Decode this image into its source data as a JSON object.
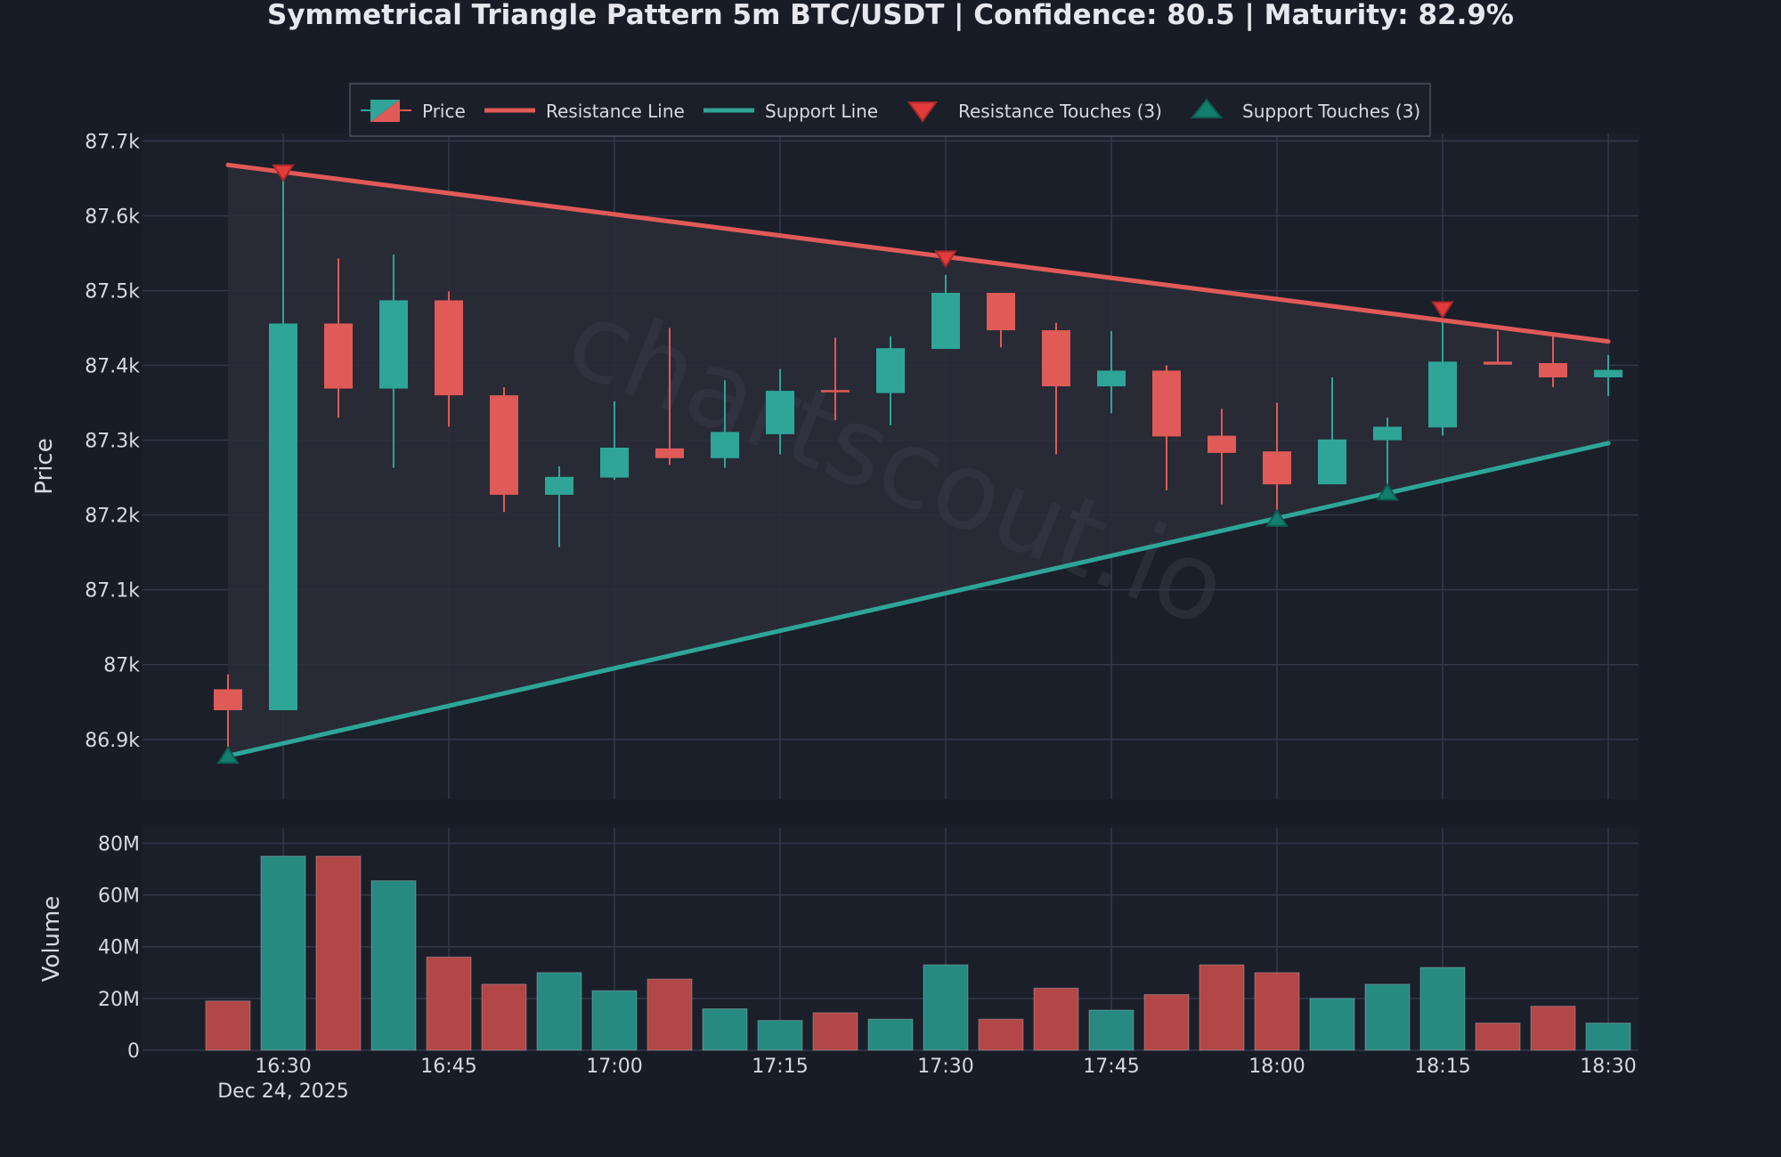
{
  "title": "Symmetrical Triangle Pattern 5m BTC/USDT | Confidence: 80.5 | Maturity: 82.9%",
  "watermark": "chartscout.io",
  "colors": {
    "background": "#181c27",
    "plot_bg": "#1b1f2a",
    "bull": "#2ea597",
    "bear": "#e05a57",
    "bull_volume": "#268a80",
    "bear_volume": "#b34747",
    "triangle_fill": "#2a2d38",
    "grid": "#32384a"
  },
  "legend": {
    "price": "Price",
    "resistance_line": "Resistance Line",
    "support_line": "Support Line",
    "resistance_touches": "Resistance Touches (3)",
    "support_touches": "Support Touches (3)"
  },
  "chart_data": [
    {
      "type": "candlestick",
      "ylabel": "Price",
      "ylim": [
        86820,
        87710
      ],
      "y_ticks": [
        {
          "value": 86900,
          "label": "86.9k"
        },
        {
          "value": 87000,
          "label": "87k"
        },
        {
          "value": 87100,
          "label": "87.1k"
        },
        {
          "value": 87200,
          "label": "87.2k"
        },
        {
          "value": 87300,
          "label": "87.3k"
        },
        {
          "value": 87400,
          "label": "87.4k"
        },
        {
          "value": 87500,
          "label": "87.5k"
        },
        {
          "value": 87600,
          "label": "87.6k"
        },
        {
          "value": 87700,
          "label": "87.7k"
        }
      ],
      "x_ticks": [
        "16:30",
        "16:45",
        "17:00",
        "17:15",
        "17:30",
        "17:45",
        "18:00",
        "18:15",
        "18:30"
      ],
      "x_date_label": "Dec 24, 2025",
      "grid": true,
      "legend_position": "top-center",
      "candles": [
        {
          "time": "16:25",
          "open": 86967,
          "high": 86987,
          "low": 86890,
          "close": 86939
        },
        {
          "time": "16:30",
          "open": 86939,
          "high": 87667,
          "low": 86939,
          "close": 87456
        },
        {
          "time": "16:35",
          "open": 87456,
          "high": 87543,
          "low": 87330,
          "close": 87369
        },
        {
          "time": "16:40",
          "open": 87369,
          "high": 87548,
          "low": 87263,
          "close": 87487
        },
        {
          "time": "16:45",
          "open": 87487,
          "high": 87499,
          "low": 87318,
          "close": 87360
        },
        {
          "time": "16:50",
          "open": 87360,
          "high": 87371,
          "low": 87204,
          "close": 87227
        },
        {
          "time": "16:55",
          "open": 87227,
          "high": 87265,
          "low": 87157,
          "close": 87251
        },
        {
          "time": "17:00",
          "open": 87250,
          "high": 87352,
          "low": 87247,
          "close": 87290
        },
        {
          "time": "17:05",
          "open": 87289,
          "high": 87450,
          "low": 87267,
          "close": 87276
        },
        {
          "time": "17:10",
          "open": 87276,
          "high": 87380,
          "low": 87263,
          "close": 87311
        },
        {
          "time": "17:15",
          "open": 87308,
          "high": 87395,
          "low": 87281,
          "close": 87366
        },
        {
          "time": "17:20",
          "open": 87367,
          "high": 87437,
          "low": 87327,
          "close": 87364
        },
        {
          "time": "17:25",
          "open": 87363,
          "high": 87439,
          "low": 87320,
          "close": 87423
        },
        {
          "time": "17:30",
          "open": 87422,
          "high": 87521,
          "low": 87422,
          "close": 87497
        },
        {
          "time": "17:35",
          "open": 87497,
          "high": 87497,
          "low": 87424,
          "close": 87447
        },
        {
          "time": "17:40",
          "open": 87447,
          "high": 87457,
          "low": 87281,
          "close": 87372
        },
        {
          "time": "17:45",
          "open": 87372,
          "high": 87446,
          "low": 87336,
          "close": 87393
        },
        {
          "time": "17:50",
          "open": 87393,
          "high": 87400,
          "low": 87233,
          "close": 87305
        },
        {
          "time": "17:55",
          "open": 87306,
          "high": 87342,
          "low": 87214,
          "close": 87283
        },
        {
          "time": "18:00",
          "open": 87285,
          "high": 87350,
          "low": 87201,
          "close": 87241
        },
        {
          "time": "18:05",
          "open": 87241,
          "high": 87384,
          "low": 87241,
          "close": 87301
        },
        {
          "time": "18:10",
          "open": 87300,
          "high": 87330,
          "low": 87225,
          "close": 87318
        },
        {
          "time": "18:15",
          "open": 87317,
          "high": 87463,
          "low": 87306,
          "close": 87405
        },
        {
          "time": "18:20",
          "open": 87405,
          "high": 87446,
          "low": 87402,
          "close": 87401
        },
        {
          "time": "18:25",
          "open": 87403,
          "high": 87441,
          "low": 87371,
          "close": 87384
        },
        {
          "time": "18:30",
          "open": 87384,
          "high": 87414,
          "low": 87359,
          "close": 87394
        }
      ],
      "resistance_line": {
        "start": {
          "time": "16:25",
          "price": 87668
        },
        "end": {
          "time": "18:30",
          "price": 87432
        }
      },
      "support_line": {
        "start": {
          "time": "16:25",
          "price": 86878
        },
        "end": {
          "time": "18:30",
          "price": 87296
        }
      },
      "resistance_touches": [
        {
          "time": "16:30",
          "price": 87658
        },
        {
          "time": "17:30",
          "price": 87543
        },
        {
          "time": "18:15",
          "price": 87475
        }
      ],
      "support_touches": [
        {
          "time": "16:25",
          "price": 86878
        },
        {
          "time": "18:00",
          "price": 87195
        },
        {
          "time": "18:10",
          "price": 87230
        }
      ]
    },
    {
      "type": "bar",
      "ylabel": "Volume",
      "ylim": [
        0,
        86000000
      ],
      "y_ticks": [
        {
          "value": 0,
          "label": "0"
        },
        {
          "value": 20000000,
          "label": "20M"
        },
        {
          "value": 40000000,
          "label": "40M"
        },
        {
          "value": 60000000,
          "label": "60M"
        },
        {
          "value": 80000000,
          "label": "80M"
        }
      ],
      "grid": true,
      "bars": [
        {
          "time": "16:25",
          "value": 19000000,
          "direction": "down"
        },
        {
          "time": "16:30",
          "value": 75000000,
          "direction": "up"
        },
        {
          "time": "16:35",
          "value": 75000000,
          "direction": "down"
        },
        {
          "time": "16:40",
          "value": 65500000,
          "direction": "up"
        },
        {
          "time": "16:45",
          "value": 36000000,
          "direction": "down"
        },
        {
          "time": "16:50",
          "value": 25500000,
          "direction": "down"
        },
        {
          "time": "16:55",
          "value": 30000000,
          "direction": "up"
        },
        {
          "time": "17:00",
          "value": 23000000,
          "direction": "up"
        },
        {
          "time": "17:05",
          "value": 27500000,
          "direction": "down"
        },
        {
          "time": "17:10",
          "value": 16000000,
          "direction": "up"
        },
        {
          "time": "17:15",
          "value": 11500000,
          "direction": "up"
        },
        {
          "time": "17:20",
          "value": 14500000,
          "direction": "down"
        },
        {
          "time": "17:25",
          "value": 12000000,
          "direction": "up"
        },
        {
          "time": "17:30",
          "value": 33000000,
          "direction": "up"
        },
        {
          "time": "17:35",
          "value": 12000000,
          "direction": "down"
        },
        {
          "time": "17:40",
          "value": 24000000,
          "direction": "down"
        },
        {
          "time": "17:45",
          "value": 15500000,
          "direction": "up"
        },
        {
          "time": "17:50",
          "value": 21500000,
          "direction": "down"
        },
        {
          "time": "17:55",
          "value": 33000000,
          "direction": "down"
        },
        {
          "time": "18:00",
          "value": 30000000,
          "direction": "down"
        },
        {
          "time": "18:05",
          "value": 20000000,
          "direction": "up"
        },
        {
          "time": "18:10",
          "value": 25500000,
          "direction": "up"
        },
        {
          "time": "18:15",
          "value": 32000000,
          "direction": "up"
        },
        {
          "time": "18:20",
          "value": 10500000,
          "direction": "down"
        },
        {
          "time": "18:25",
          "value": 17000000,
          "direction": "down"
        },
        {
          "time": "18:30",
          "value": 10500000,
          "direction": "up"
        }
      ]
    }
  ]
}
